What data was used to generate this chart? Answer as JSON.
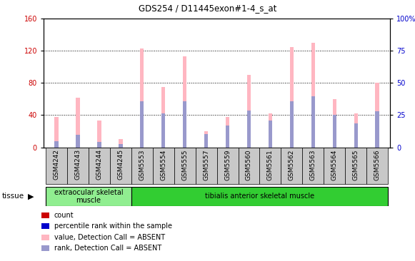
{
  "title": "GDS254 / D11445exon#1-4_s_at",
  "samples": [
    "GSM4242",
    "GSM4243",
    "GSM4244",
    "GSM4245",
    "GSM5553",
    "GSM5554",
    "GSM5555",
    "GSM5557",
    "GSM5559",
    "GSM5560",
    "GSM5561",
    "GSM5562",
    "GSM5563",
    "GSM5564",
    "GSM5565",
    "GSM5566"
  ],
  "pink_values": [
    38,
    62,
    33,
    10,
    123,
    75,
    113,
    20,
    38,
    90,
    42,
    124,
    130,
    60,
    42,
    80
  ],
  "blue_values": [
    8,
    16,
    7,
    4,
    57,
    42,
    57,
    17,
    27,
    46,
    33,
    57,
    63,
    40,
    30,
    45
  ],
  "groups": [
    {
      "label": "extraocular skeletal\nmuscle",
      "start": 0,
      "end": 4,
      "color": "#90ee90"
    },
    {
      "label": "tibialis anterior skeletal muscle",
      "start": 4,
      "end": 16,
      "color": "#32cd32"
    }
  ],
  "left_ylim": [
    0,
    160
  ],
  "right_ylim": [
    0,
    100
  ],
  "left_yticks": [
    0,
    40,
    80,
    120,
    160
  ],
  "right_yticks": [
    0,
    25,
    50,
    75,
    100
  ],
  "right_yticklabels": [
    "0",
    "25",
    "50",
    "75",
    "100%"
  ],
  "left_color": "#cc0000",
  "right_color": "#0000cc",
  "pink_bar_color": "#ffb6c1",
  "blue_bar_color": "#9999cc",
  "bar_width": 0.18,
  "bg_color": "#ffffff",
  "grid_color": "#000000",
  "legend_items": [
    {
      "color": "#cc0000",
      "label": "count"
    },
    {
      "color": "#0000cc",
      "label": "percentile rank within the sample"
    },
    {
      "color": "#ffb6c1",
      "label": "value, Detection Call = ABSENT"
    },
    {
      "color": "#9999cc",
      "label": "rank, Detection Call = ABSENT"
    }
  ],
  "tissue_label": "tissue",
  "xtick_bg_color": "#c8c8c8"
}
